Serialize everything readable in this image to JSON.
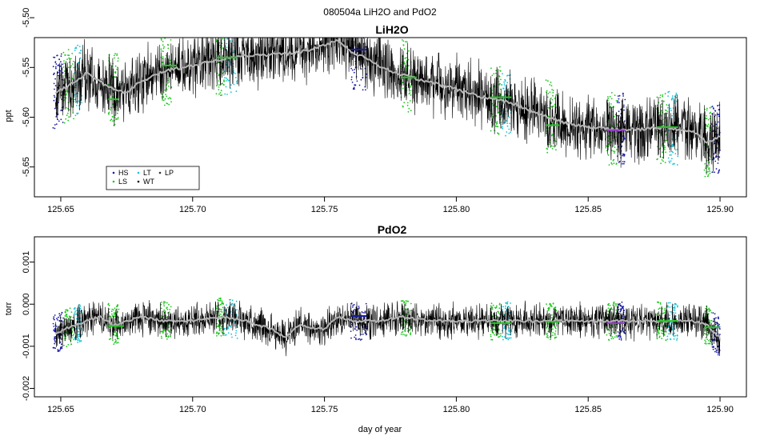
{
  "figure_title": "080504a   LiH2O and PdO2",
  "chart_data": [
    {
      "type": "line",
      "title": "LiH2O",
      "xlabel": "",
      "ylabel": "ppt",
      "xlim": [
        125.64,
        125.91
      ],
      "ylim": [
        -5.68,
        -5.52
      ],
      "xticks": [
        125.65,
        125.7,
        125.75,
        125.8,
        125.85,
        125.9
      ],
      "xtick_labels": [
        "125.65",
        "125.70",
        "125.75",
        "125.80",
        "125.85",
        "125.90"
      ],
      "yticks": [
        -5.65,
        -5.6,
        -5.55,
        -5.5
      ],
      "ytick_labels": [
        "-5.65",
        "-5.60",
        "-5.55",
        "-5.50"
      ],
      "grid": false,
      "legend_position": "bottom-left",
      "legend": [
        {
          "label": "HS",
          "color": "#1a1aa6"
        },
        {
          "label": "LS",
          "color": "#1ec81e"
        },
        {
          "label": "LT",
          "color": "#19c3d8"
        },
        {
          "label": "WT",
          "color": "#000000"
        },
        {
          "label": "LP",
          "color": "#333333"
        }
      ],
      "x": [
        125.648,
        125.655,
        125.66,
        125.665,
        125.67,
        125.675,
        125.68,
        125.69,
        125.7,
        125.71,
        125.72,
        125.73,
        125.74,
        125.75,
        125.755,
        125.76,
        125.765,
        125.77,
        125.78,
        125.79,
        125.8,
        125.81,
        125.82,
        125.83,
        125.84,
        125.85,
        125.86,
        125.87,
        125.88,
        125.89,
        125.895,
        125.9
      ],
      "series": [
        {
          "color": "#000000",
          "noise": 0.028,
          "values": [
            -5.575,
            -5.565,
            -5.555,
            -5.565,
            -5.572,
            -5.575,
            -5.565,
            -5.553,
            -5.548,
            -5.542,
            -5.538,
            -5.537,
            -5.535,
            -5.528,
            -5.522,
            -5.535,
            -5.54,
            -5.548,
            -5.558,
            -5.565,
            -5.572,
            -5.58,
            -5.585,
            -5.595,
            -5.605,
            -5.61,
            -5.612,
            -5.612,
            -5.61,
            -5.615,
            -5.625,
            -5.62
          ]
        },
        {
          "color": "#b4b4b4",
          "noise": 0.0,
          "values": [
            -5.575,
            -5.565,
            -5.555,
            -5.565,
            -5.572,
            -5.575,
            -5.565,
            -5.553,
            -5.548,
            -5.542,
            -5.538,
            -5.537,
            -5.535,
            -5.528,
            -5.522,
            -5.535,
            -5.54,
            -5.548,
            -5.558,
            -5.565,
            -5.572,
            -5.58,
            -5.585,
            -5.595,
            -5.605,
            -5.61,
            -5.612,
            -5.612,
            -5.61,
            -5.615,
            -5.625,
            -5.62
          ]
        }
      ],
      "bands": [
        {
          "x": [
            125.647,
            125.651
          ],
          "color": "#1a1aa6"
        },
        {
          "x": [
            125.651,
            125.655
          ],
          "color": "#1ec81e"
        },
        {
          "x": [
            125.655,
            125.658
          ],
          "color": "#19c3d8"
        },
        {
          "x": [
            125.668,
            125.672
          ],
          "color": "#1ec81e"
        },
        {
          "x": [
            125.688,
            125.692
          ],
          "color": "#1ec81e"
        },
        {
          "x": [
            125.709,
            125.712
          ],
          "color": "#1ec81e"
        },
        {
          "x": [
            125.712,
            125.717
          ],
          "color": "#19c3d8"
        },
        {
          "x": [
            125.76,
            125.766
          ],
          "color": "#1a1aa6"
        },
        {
          "x": [
            125.779,
            125.783
          ],
          "color": "#1ec81e"
        },
        {
          "x": [
            125.813,
            125.817
          ],
          "color": "#1ec81e"
        },
        {
          "x": [
            125.817,
            125.821
          ],
          "color": "#19c3d8"
        },
        {
          "x": [
            125.834,
            125.838
          ],
          "color": "#1ec81e"
        },
        {
          "x": [
            125.857,
            125.861
          ],
          "color": "#1ec81e"
        },
        {
          "x": [
            125.861,
            125.864
          ],
          "color": "#1a1aa6"
        },
        {
          "x": [
            125.876,
            125.88
          ],
          "color": "#1ec81e"
        },
        {
          "x": [
            125.88,
            125.884
          ],
          "color": "#19c3d8"
        },
        {
          "x": [
            125.894,
            125.897
          ],
          "color": "#1ec81e"
        },
        {
          "x": [
            125.897,
            125.9
          ],
          "color": "#1a1aa6"
        }
      ],
      "steps": [
        {
          "x": [
            125.668,
            125.672
          ],
          "y": -5.582,
          "color": "#1ec81e"
        },
        {
          "x": [
            125.688,
            125.694
          ],
          "y": -5.548,
          "color": "#1ec81e"
        },
        {
          "x": [
            125.709,
            125.717
          ],
          "y": -5.54,
          "color": "#1ec81e"
        },
        {
          "x": [
            125.76,
            125.766
          ],
          "y": -5.532,
          "color": "#1a1aa6"
        },
        {
          "x": [
            125.779,
            125.785
          ],
          "y": -5.56,
          "color": "#1ec81e"
        },
        {
          "x": [
            125.813,
            125.821
          ],
          "y": -5.58,
          "color": "#1ec81e"
        },
        {
          "x": [
            125.834,
            125.839
          ],
          "y": -5.608,
          "color": "#1ec81e"
        },
        {
          "x": [
            125.857,
            125.864
          ],
          "y": -5.613,
          "color": "#9a3ad8"
        },
        {
          "x": [
            125.876,
            125.884
          ],
          "y": -5.61,
          "color": "#1ec81e"
        }
      ]
    },
    {
      "type": "line",
      "title": "PdO2",
      "xlabel": "day of year",
      "ylabel": "torr",
      "xlim": [
        125.64,
        125.91
      ],
      "ylim": [
        -0.0022,
        0.0016
      ],
      "xticks": [
        125.65,
        125.7,
        125.75,
        125.8,
        125.85,
        125.9
      ],
      "xtick_labels": [
        "125.65",
        "125.70",
        "125.75",
        "125.80",
        "125.85",
        "125.90"
      ],
      "yticks": [
        -0.002,
        -0.001,
        0.0,
        0.001
      ],
      "ytick_labels": [
        "-0.002",
        "-0.001",
        "0.000",
        "0.001"
      ],
      "grid": false,
      "x": [
        125.648,
        125.655,
        125.66,
        125.665,
        125.67,
        125.675,
        125.68,
        125.69,
        125.7,
        125.71,
        125.72,
        125.73,
        125.735,
        125.74,
        125.75,
        125.755,
        125.76,
        125.77,
        125.78,
        125.79,
        125.8,
        125.81,
        125.82,
        125.83,
        125.84,
        125.85,
        125.86,
        125.87,
        125.88,
        125.89,
        125.895,
        125.9
      ],
      "series": [
        {
          "color": "#000000",
          "noise": 0.00035,
          "values": [
            -0.0007,
            -0.0005,
            -0.0004,
            -0.0003,
            -0.0005,
            -0.0004,
            -0.0003,
            -0.0004,
            -0.0004,
            -0.0003,
            -0.0004,
            -0.0006,
            -0.0008,
            -0.0005,
            -0.0006,
            -0.0003,
            -0.0004,
            -0.0004,
            -0.0003,
            -0.0004,
            -0.0004,
            -0.0004,
            -0.0004,
            -0.0004,
            -0.0004,
            -0.0004,
            -0.0004,
            -0.0004,
            -0.0004,
            -0.0004,
            -0.0005,
            -0.0008
          ]
        },
        {
          "color": "#b4b4b4",
          "noise": 0.0,
          "values": [
            -0.0007,
            -0.0005,
            -0.0004,
            -0.0003,
            -0.0005,
            -0.0004,
            -0.0003,
            -0.0004,
            -0.0004,
            -0.0003,
            -0.0004,
            -0.0006,
            -0.0008,
            -0.0005,
            -0.0006,
            -0.0003,
            -0.0004,
            -0.0004,
            -0.0003,
            -0.0004,
            -0.0004,
            -0.0004,
            -0.0004,
            -0.0004,
            -0.0004,
            -0.0004,
            -0.0004,
            -0.0004,
            -0.0004,
            -0.0004,
            -0.0005,
            -0.0008
          ]
        }
      ],
      "bands": [
        {
          "x": [
            125.647,
            125.651
          ],
          "color": "#1a1aa6"
        },
        {
          "x": [
            125.651,
            125.655
          ],
          "color": "#1ec81e"
        },
        {
          "x": [
            125.655,
            125.658
          ],
          "color": "#19c3d8"
        },
        {
          "x": [
            125.668,
            125.672
          ],
          "color": "#1ec81e"
        },
        {
          "x": [
            125.688,
            125.692
          ],
          "color": "#1ec81e"
        },
        {
          "x": [
            125.709,
            125.712
          ],
          "color": "#1ec81e"
        },
        {
          "x": [
            125.712,
            125.717
          ],
          "color": "#19c3d8"
        },
        {
          "x": [
            125.76,
            125.766
          ],
          "color": "#1a1aa6"
        },
        {
          "x": [
            125.779,
            125.783
          ],
          "color": "#1ec81e"
        },
        {
          "x": [
            125.813,
            125.817
          ],
          "color": "#1ec81e"
        },
        {
          "x": [
            125.817,
            125.821
          ],
          "color": "#19c3d8"
        },
        {
          "x": [
            125.834,
            125.838
          ],
          "color": "#1ec81e"
        },
        {
          "x": [
            125.857,
            125.861
          ],
          "color": "#1ec81e"
        },
        {
          "x": [
            125.861,
            125.864
          ],
          "color": "#1a1aa6"
        },
        {
          "x": [
            125.876,
            125.88
          ],
          "color": "#1ec81e"
        },
        {
          "x": [
            125.88,
            125.884
          ],
          "color": "#19c3d8"
        },
        {
          "x": [
            125.894,
            125.897
          ],
          "color": "#1ec81e"
        },
        {
          "x": [
            125.897,
            125.9
          ],
          "color": "#1a1aa6"
        }
      ],
      "steps": [
        {
          "x": [
            125.668,
            125.674
          ],
          "y": -0.00052,
          "color": "#1ec81e"
        },
        {
          "x": [
            125.76,
            125.766
          ],
          "y": -0.00028,
          "color": "#1a1aa6"
        },
        {
          "x": [
            125.813,
            125.821
          ],
          "y": -0.00045,
          "color": "#1ec81e"
        },
        {
          "x": [
            125.834,
            125.839
          ],
          "y": -0.00042,
          "color": "#1ec81e"
        },
        {
          "x": [
            125.857,
            125.864
          ],
          "y": -0.00045,
          "color": "#9a3ad8"
        },
        {
          "x": [
            125.876,
            125.884
          ],
          "y": -0.0004,
          "color": "#1ec81e"
        },
        {
          "x": [
            125.894,
            125.9
          ],
          "y": -0.00055,
          "color": "#1ec81e"
        }
      ]
    }
  ]
}
